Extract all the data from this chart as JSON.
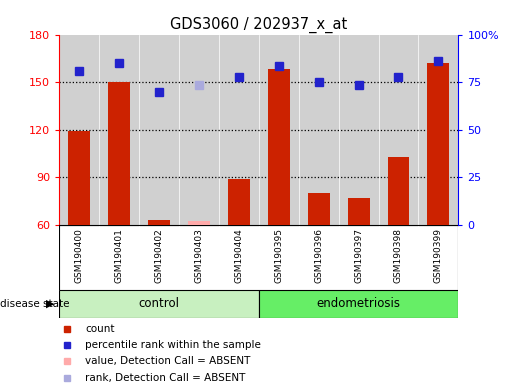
{
  "title": "GDS3060 / 202937_x_at",
  "samples": [
    "GSM190400",
    "GSM190401",
    "GSM190402",
    "GSM190403",
    "GSM190404",
    "GSM190395",
    "GSM190396",
    "GSM190397",
    "GSM190398",
    "GSM190399"
  ],
  "bar_values": [
    119,
    150,
    63,
    62,
    89,
    158,
    80,
    77,
    103,
    162
  ],
  "bar_absent": [
    false,
    false,
    false,
    true,
    false,
    false,
    false,
    false,
    false,
    false
  ],
  "bar_color_present": "#cc2200",
  "bar_color_absent": "#ffaaaa",
  "rank_values": [
    157,
    162,
    144,
    148,
    153,
    160,
    150,
    148,
    153,
    163
  ],
  "rank_absent": [
    false,
    false,
    false,
    true,
    false,
    false,
    false,
    false,
    false,
    false
  ],
  "rank_color_present": "#2222cc",
  "rank_color_absent": "#aaaadd",
  "ylim_left": [
    60,
    180
  ],
  "yticks_left": [
    60,
    90,
    120,
    150,
    180
  ],
  "yticks_right_labels": [
    "0",
    "25",
    "50",
    "75",
    "100%"
  ],
  "yticks_right_vals": [
    60,
    90,
    120,
    150,
    180
  ],
  "hlines": [
    90,
    120,
    150
  ],
  "bar_width": 0.55,
  "col_bg_color": "#d0d0d0",
  "plot_bg_color": "#ffffff",
  "n_control": 5,
  "control_color": "#c8f0c0",
  "endometriosis_color": "#66ee66",
  "control_label": "control",
  "endometriosis_label": "endometriosis",
  "disease_state_label": "disease state",
  "legend_items": [
    {
      "label": "count",
      "color": "#cc2200",
      "marker": "s"
    },
    {
      "label": "percentile rank within the sample",
      "color": "#2222cc",
      "marker": "s"
    },
    {
      "label": "value, Detection Call = ABSENT",
      "color": "#ffaaaa",
      "marker": "s"
    },
    {
      "label": "rank, Detection Call = ABSENT",
      "color": "#aaaadd",
      "marker": "s"
    }
  ],
  "fig_width": 5.15,
  "fig_height": 3.84
}
